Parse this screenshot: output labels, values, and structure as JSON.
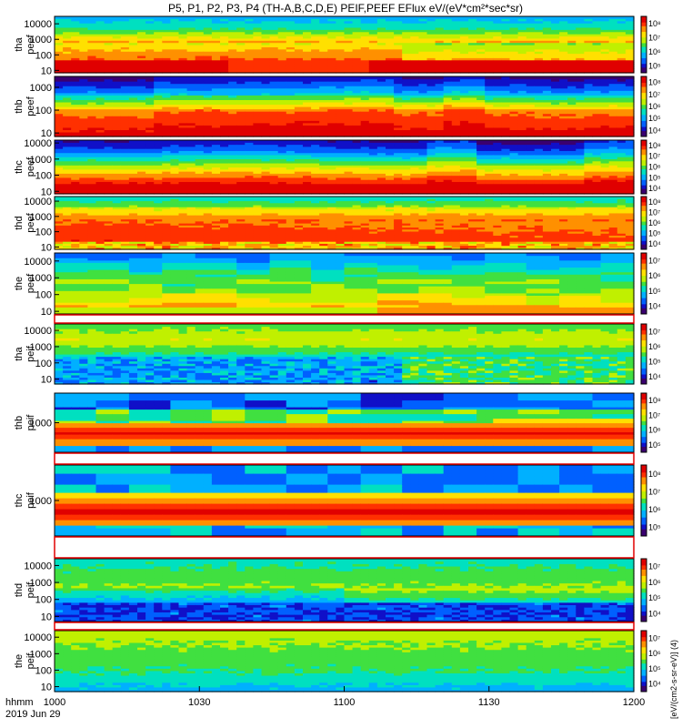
{
  "title": "P5, P1, P2, P3, P4 (TH-A,B,C,D,E) PEIF,PEEF EFlux eV/(eV*cm²*sec*sr)",
  "time_axis": {
    "row_label_1": "hhmm",
    "row_label_2": "2019 Jun 29",
    "ticks": [
      "1000",
      "1030",
      "1100",
      "1130",
      "1200"
    ]
  },
  "colorbar_units": "[eV/(cm2-s-sr-eV)] (4)",
  "chart_data": {
    "type": "heatmap",
    "x_range": [
      "1000",
      "1200"
    ],
    "panels": [
      {
        "name": "tha-peef",
        "label": [
          "tha",
          "peef"
        ],
        "species": "electron",
        "yticks": [
          "10",
          "100",
          "1000",
          "10000"
        ],
        "ylim": [
          7,
          30000
        ],
        "cbar_ticks": [
          "10⁵",
          "10⁶",
          "10⁷",
          "10⁸"
        ],
        "pattern": "tha_e"
      },
      {
        "name": "thb-peef",
        "label": [
          "thb",
          "peef"
        ],
        "species": "electron",
        "yticks": [
          "10",
          "100",
          "1000"
        ],
        "ylim": [
          7,
          3000
        ],
        "cbar_ticks": [
          "10⁴",
          "10⁵",
          "10⁶",
          "10⁷",
          "10⁸"
        ],
        "pattern": "band_e"
      },
      {
        "name": "thc-peef",
        "label": [
          "thc",
          "peef"
        ],
        "species": "electron",
        "yticks": [
          "10",
          "100",
          "1000",
          "10000"
        ],
        "ylim": [
          7,
          15000
        ],
        "cbar_ticks": [
          "10⁴",
          "10⁵",
          "10⁶",
          "10⁷",
          "10⁸"
        ],
        "pattern": "band_e2"
      },
      {
        "name": "thd-peef",
        "label": [
          "thd",
          "peef"
        ],
        "species": "electron",
        "yticks": [
          "10",
          "100",
          "1000",
          "10000"
        ],
        "ylim": [
          7,
          20000
        ],
        "cbar_ticks": [
          "10⁴",
          "10⁵",
          "10⁶",
          "10⁷",
          "10⁸"
        ],
        "pattern": "hot_e"
      },
      {
        "name": "the-peef",
        "label": [
          "the",
          "peef"
        ],
        "species": "electron",
        "yticks": [
          "10",
          "100",
          "1000",
          "10000"
        ],
        "ylim": [
          7,
          30000
        ],
        "cbar_ticks": [
          "10⁴",
          "10⁵",
          "10⁶",
          "10⁷"
        ],
        "pattern": "the_e"
      },
      {
        "name": "tha-peif",
        "label": [
          "tha",
          "peif"
        ],
        "species": "ion",
        "yticks": [
          "10",
          "100",
          "1000",
          "10000"
        ],
        "ylim": [
          5,
          25000
        ],
        "cbar_ticks": [
          "10⁴",
          "10⁵",
          "10⁶",
          "10⁷"
        ],
        "pattern": "tha_i"
      },
      {
        "name": "thb-peif",
        "label": [
          "thb",
          "peif"
        ],
        "species": "ion",
        "yticks": [
          "1000"
        ],
        "ylim": [
          100,
          10000
        ],
        "cbar_ticks": [
          "10⁵",
          "10⁶",
          "10⁷",
          "10⁸"
        ],
        "pattern": "thb_i"
      },
      {
        "name": "thc-peif",
        "label": [
          "thc",
          "peif"
        ],
        "species": "ion",
        "yticks": [
          "1000"
        ],
        "ylim": [
          100,
          10000
        ],
        "cbar_ticks": [
          "10⁵",
          "10⁶",
          "10⁷",
          "10⁸"
        ],
        "pattern": "thc_i"
      },
      {
        "name": "thd-peif",
        "label": [
          "thd",
          "peif"
        ],
        "species": "ion",
        "yticks": [
          "10",
          "100",
          "1000",
          "10000"
        ],
        "ylim": [
          5,
          25000
        ],
        "cbar_ticks": [
          "10⁴",
          "10⁵",
          "10⁶",
          "10⁷"
        ],
        "pattern": "thd_i"
      },
      {
        "name": "the-peif",
        "label": [
          "the",
          "peif"
        ],
        "species": "ion",
        "yticks": [
          "10",
          "100",
          "1000",
          "10000"
        ],
        "ylim": [
          5,
          25000
        ],
        "cbar_ticks": [
          "10⁴",
          "10⁵",
          "10⁶",
          "10⁷"
        ],
        "pattern": "the_i"
      }
    ],
    "colormap": [
      "#3a0070",
      "#1010c8",
      "#0060ff",
      "#00b0ff",
      "#00e0c0",
      "#40e040",
      "#c0f000",
      "#ffe000",
      "#ff9000",
      "#ff3000",
      "#e00000"
    ]
  }
}
